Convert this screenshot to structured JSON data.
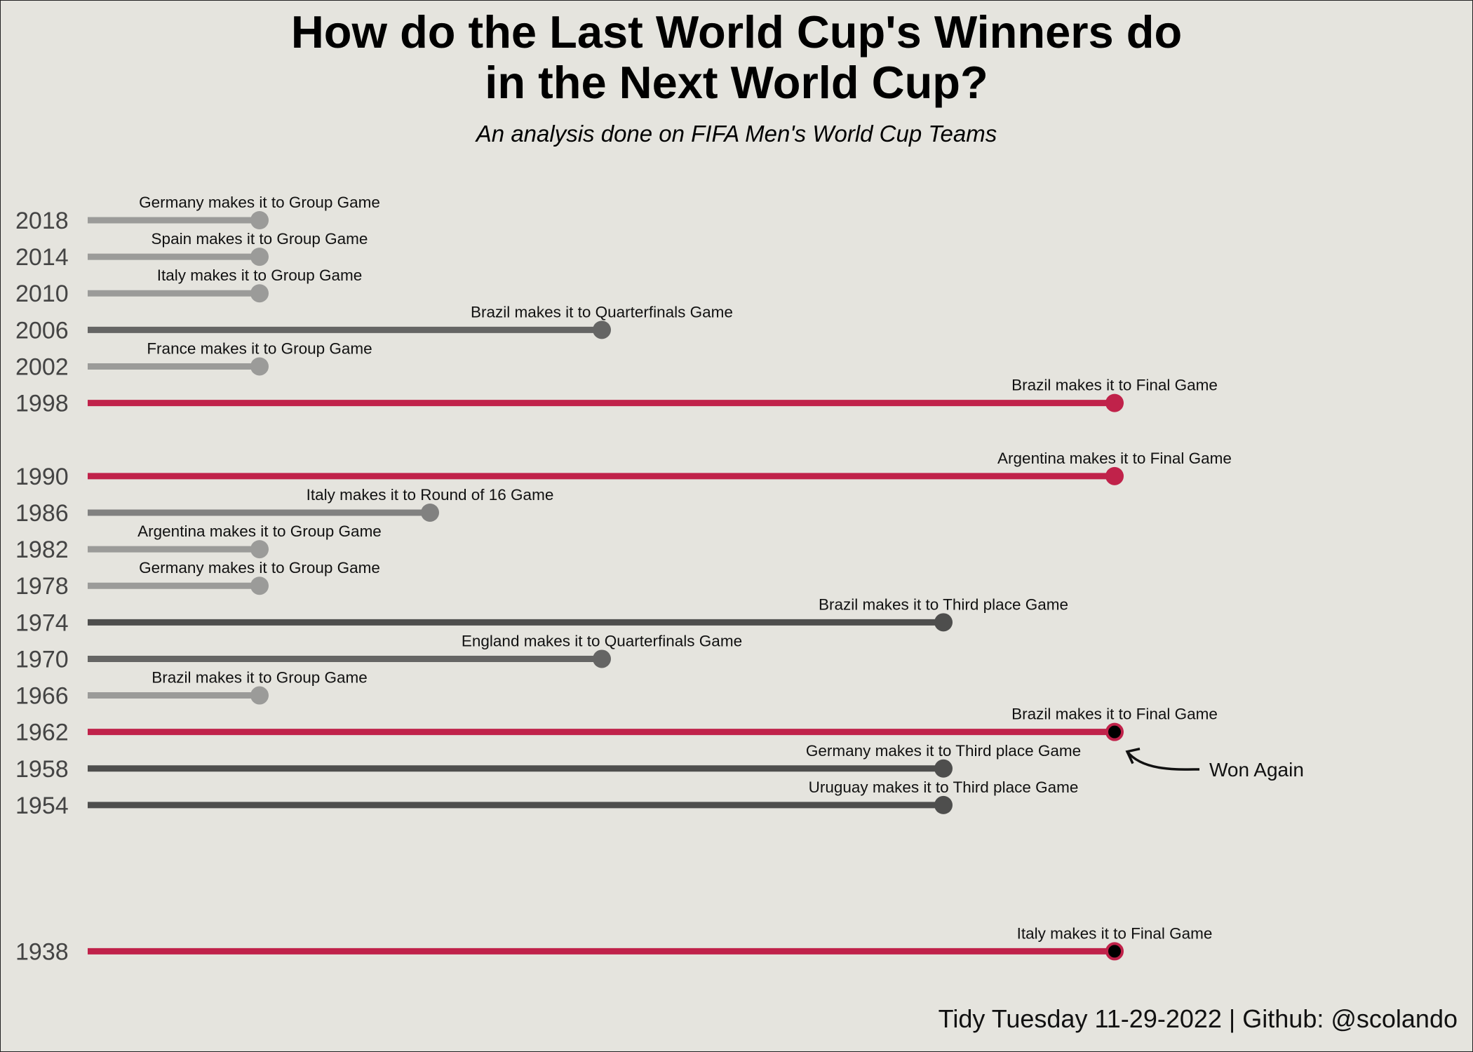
{
  "header": {
    "title_line1": "How do the Last World Cup's Winners do",
    "title_line2": "in the Next World Cup?",
    "subtitle": "An analysis done on FIFA Men's World Cup Teams"
  },
  "caption": "Tidy Tuesday 11-29-2022 | Github: @scolando",
  "chart_data": {
    "type": "lollipop",
    "y_axis": "year",
    "x_stage_order": [
      "Group",
      "Round of 16",
      "Quarterfinals",
      "Third place",
      "Final"
    ],
    "annotation": {
      "text": "Won Again",
      "points_to": [
        1962,
        1938
      ]
    },
    "colors": {
      "Group": "#9b9b99",
      "Round of 16": "#818180",
      "Quarterfinals": "#656564",
      "Third place": "#4e4e4d",
      "Final": "#c0224a",
      "won_again_dot": "#000000",
      "year_label": "#444444"
    },
    "rows": [
      {
        "year": 2018,
        "label": "Germany makes it to Group Game",
        "stage": "Group",
        "won_again": false
      },
      {
        "year": 2014,
        "label": "Spain makes it to Group Game",
        "stage": "Group",
        "won_again": false
      },
      {
        "year": 2010,
        "label": "Italy makes it to Group Game",
        "stage": "Group",
        "won_again": false
      },
      {
        "year": 2006,
        "label": "Brazil makes it to Quarterfinals Game",
        "stage": "Quarterfinals",
        "won_again": false
      },
      {
        "year": 2002,
        "label": "France makes it to Group Game",
        "stage": "Group",
        "won_again": false
      },
      {
        "year": 1998,
        "label": "Brazil makes it to Final Game",
        "stage": "Final",
        "won_again": false
      },
      {
        "year": 1990,
        "label": "Argentina makes it to Final Game",
        "stage": "Final",
        "won_again": false
      },
      {
        "year": 1986,
        "label": "Italy makes it to Round of 16 Game",
        "stage": "Round of 16",
        "won_again": false
      },
      {
        "year": 1982,
        "label": "Argentina makes it to Group Game",
        "stage": "Group",
        "won_again": false
      },
      {
        "year": 1978,
        "label": "Germany makes it to Group Game",
        "stage": "Group",
        "won_again": false
      },
      {
        "year": 1974,
        "label": "Brazil makes it to Third place Game",
        "stage": "Third place",
        "won_again": false
      },
      {
        "year": 1970,
        "label": "England makes it to Quarterfinals Game",
        "stage": "Quarterfinals",
        "won_again": false
      },
      {
        "year": 1966,
        "label": "Brazil makes it to Group Game",
        "stage": "Group",
        "won_again": false
      },
      {
        "year": 1962,
        "label": "Brazil makes it to Final Game",
        "stage": "Final",
        "won_again": true
      },
      {
        "year": 1958,
        "label": "Germany makes it to Third place Game",
        "stage": "Third place",
        "won_again": false
      },
      {
        "year": 1954,
        "label": "Uruguay makes it to Third place Game",
        "stage": "Third place",
        "won_again": false
      },
      {
        "year": 1938,
        "label": "Italy makes it to Final Game",
        "stage": "Final",
        "won_again": true
      }
    ]
  }
}
